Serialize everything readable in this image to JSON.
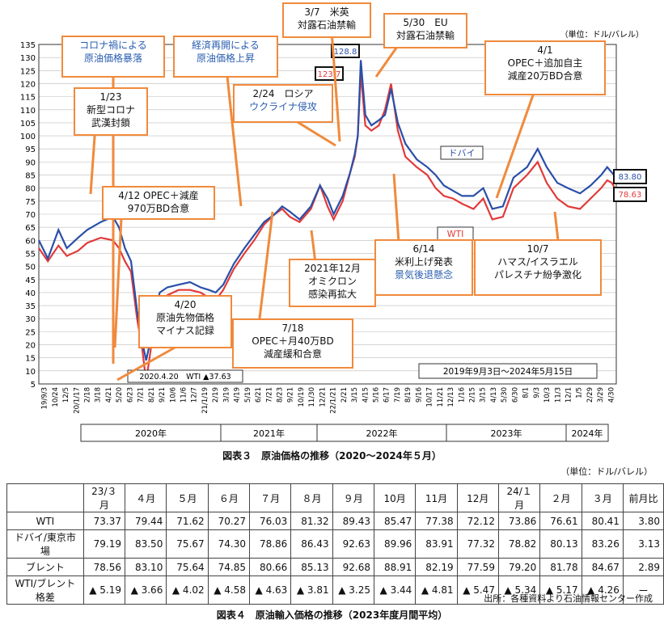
{
  "chart_data": {
    "type": "line",
    "title": "図表３　原油価格の推移（2020〜2024年５月）",
    "unit": "（単位：ドル/バレル）",
    "period": "2019年9月3日〜2024年5月15日",
    "ylim": [
      5,
      135
    ],
    "yticks": [
      5,
      10,
      15,
      20,
      25,
      30,
      35,
      40,
      45,
      50,
      55,
      60,
      65,
      70,
      75,
      80,
      85,
      90,
      95,
      100,
      105,
      110,
      115,
      120,
      125,
      130,
      135
    ],
    "xticks": [
      "19/9/3",
      "10/24",
      "12/5",
      "20/1/17",
      "2/18",
      "3/18",
      "4/21",
      "5/20",
      "6/23",
      "7/21",
      "8/21",
      "9/21",
      "10/6",
      "11/6",
      "12/7",
      "21/1/19",
      "2/19",
      "3/19",
      "4/19",
      "5/19",
      "6/21",
      "7/21",
      "8/23",
      "9/21",
      "10/19",
      "11/30",
      "12/21",
      "22/1/21",
      "2/21",
      "3/15",
      "4/15",
      "5/16",
      "6/17",
      "7/19",
      "8/19",
      "9/16",
      "10/17",
      "11/21",
      "12/13",
      "1/16",
      "2/15",
      "3/15",
      "4/13",
      "5/30",
      "6/30",
      "8/1",
      "9/3",
      "10/3",
      "11/3",
      "12/1",
      "1/5",
      "2/29",
      "3/29",
      "4/30"
    ],
    "years": [
      "2020年",
      "2021年",
      "2022年",
      "2023年",
      "2024年"
    ],
    "series": [
      {
        "name": "ドバイ",
        "color": "#2a4fa8",
        "last": "83.80",
        "points": [
          [
            0,
            60
          ],
          [
            12,
            53
          ],
          [
            26,
            64
          ],
          [
            37,
            57
          ],
          [
            52,
            61
          ],
          [
            64,
            64
          ],
          [
            82,
            67
          ],
          [
            98,
            69
          ],
          [
            106,
            65
          ],
          [
            114,
            57
          ],
          [
            122,
            52
          ],
          [
            130,
            33
          ],
          [
            137,
            21
          ],
          [
            142,
            14
          ],
          [
            148,
            22
          ],
          [
            154,
            32
          ],
          [
            160,
            40
          ],
          [
            170,
            42
          ],
          [
            185,
            43
          ],
          [
            200,
            44
          ],
          [
            214,
            42
          ],
          [
            225,
            41
          ],
          [
            234,
            40
          ],
          [
            244,
            43
          ],
          [
            258,
            51
          ],
          [
            272,
            57
          ],
          [
            285,
            62
          ],
          [
            298,
            67
          ],
          [
            312,
            70
          ],
          [
            322,
            73
          ],
          [
            332,
            71
          ],
          [
            345,
            68
          ],
          [
            360,
            73
          ],
          [
            372,
            81
          ],
          [
            382,
            76
          ],
          [
            390,
            70
          ],
          [
            402,
            77
          ],
          [
            412,
            86
          ],
          [
            418,
            93
          ],
          [
            422,
            100
          ],
          [
            426,
            129
          ],
          [
            432,
            108
          ],
          [
            440,
            104
          ],
          [
            450,
            106
          ],
          [
            458,
            108
          ],
          [
            466,
            118
          ],
          [
            475,
            105
          ],
          [
            485,
            97
          ],
          [
            500,
            91
          ],
          [
            514,
            88
          ],
          [
            525,
            85
          ],
          [
            536,
            81
          ],
          [
            548,
            79
          ],
          [
            560,
            77
          ],
          [
            575,
            77
          ],
          [
            588,
            80
          ],
          [
            600,
            72
          ],
          [
            614,
            73
          ],
          [
            628,
            84
          ],
          [
            646,
            88
          ],
          [
            660,
            95
          ],
          [
            672,
            88
          ],
          [
            686,
            82
          ],
          [
            700,
            80
          ],
          [
            716,
            78
          ],
          [
            730,
            81
          ],
          [
            744,
            85
          ],
          [
            752,
            88
          ],
          [
            758,
            86
          ],
          [
            764,
            84
          ]
        ]
      },
      {
        "name": "WTI",
        "color": "#e23a3a",
        "last": "78.63",
        "points": [
          [
            0,
            57
          ],
          [
            12,
            52
          ],
          [
            26,
            58
          ],
          [
            37,
            54
          ],
          [
            52,
            56
          ],
          [
            64,
            59
          ],
          [
            82,
            61
          ],
          [
            98,
            60
          ],
          [
            106,
            57
          ],
          [
            114,
            52
          ],
          [
            122,
            48
          ],
          [
            130,
            30
          ],
          [
            137,
            18
          ],
          [
            142,
            6
          ],
          [
            148,
            18
          ],
          [
            154,
            29
          ],
          [
            160,
            37
          ],
          [
            170,
            39
          ],
          [
            185,
            41
          ],
          [
            200,
            41
          ],
          [
            214,
            40
          ],
          [
            225,
            38
          ],
          [
            234,
            37
          ],
          [
            244,
            41
          ],
          [
            258,
            49
          ],
          [
            272,
            55
          ],
          [
            285,
            60
          ],
          [
            298,
            66
          ],
          [
            312,
            70
          ],
          [
            322,
            72
          ],
          [
            332,
            69
          ],
          [
            345,
            67
          ],
          [
            360,
            72
          ],
          [
            372,
            81
          ],
          [
            382,
            73
          ],
          [
            390,
            68
          ],
          [
            402,
            75
          ],
          [
            412,
            86
          ],
          [
            418,
            92
          ],
          [
            422,
            100
          ],
          [
            426,
            124
          ],
          [
            432,
            104
          ],
          [
            440,
            102
          ],
          [
            450,
            104
          ],
          [
            458,
            110
          ],
          [
            466,
            120
          ],
          [
            475,
            102
          ],
          [
            485,
            92
          ],
          [
            500,
            88
          ],
          [
            514,
            85
          ],
          [
            525,
            80
          ],
          [
            536,
            77
          ],
          [
            548,
            76
          ],
          [
            560,
            74
          ],
          [
            575,
            72
          ],
          [
            588,
            76
          ],
          [
            600,
            68
          ],
          [
            614,
            69
          ],
          [
            628,
            80
          ],
          [
            646,
            85
          ],
          [
            660,
            90
          ],
          [
            672,
            82
          ],
          [
            686,
            76
          ],
          [
            700,
            73
          ],
          [
            716,
            72
          ],
          [
            730,
            76
          ],
          [
            744,
            80
          ],
          [
            752,
            83
          ],
          [
            758,
            82
          ],
          [
            764,
            79
          ]
        ]
      }
    ],
    "annotations": [
      {
        "id": "a1",
        "lines": [
          "コロナ禍による",
          "原油価格暴落"
        ],
        "blue": [
          0,
          1
        ]
      },
      {
        "id": "a2",
        "lines": [
          "経済再開による",
          "原油価格上昇"
        ],
        "blue": [
          0,
          1
        ]
      },
      {
        "id": "a3",
        "lines": [
          "3/7　米英",
          "対露石油禁輸"
        ],
        "blue": []
      },
      {
        "id": "a4",
        "lines": [
          "5/30　EU",
          "対露石油禁輸"
        ],
        "blue": []
      },
      {
        "id": "a5",
        "lines": [
          "4/1",
          "OPEC＋追加自主",
          "減産20万BD合意"
        ],
        "blue": []
      },
      {
        "id": "a6",
        "lines": [
          "1/23",
          "新型コロナ",
          "武漢封鎖"
        ],
        "blue": []
      },
      {
        "id": "a7",
        "lines": [
          "2/24　ロシア",
          "ウクライナ侵攻"
        ],
        "blue": [
          1
        ]
      },
      {
        "id": "a8",
        "lines": [
          "4/12 OPEC＋減産",
          "970万BD合意"
        ],
        "blue": []
      },
      {
        "id": "a9",
        "lines": [
          "2021年12月",
          "オミクロン",
          "感染再拡大"
        ],
        "blue": []
      },
      {
        "id": "a10",
        "lines": [
          "6/14",
          "米利上げ発表",
          "景気後退懸念"
        ],
        "blue": [
          2
        ]
      },
      {
        "id": "a11",
        "lines": [
          "10/7",
          "ハマス/イスラエル",
          "パレスチナ紛争激化"
        ],
        "blue": []
      },
      {
        "id": "a12",
        "lines": [
          "4/20",
          "原油先物価格",
          "マイナス記録"
        ],
        "blue": []
      },
      {
        "id": "a13",
        "lines": [
          "7/18",
          "OPEC＋月40万BD",
          "減産緩和合意"
        ],
        "blue": []
      }
    ],
    "labels": {
      "peak_dubai": "128.8",
      "peak_wti": "123.7",
      "neg_note": "2020.4.20　WTI ▲37.63"
    }
  },
  "table": {
    "title": "図表４　原油輸入価格の推移（2023年度月間平均）",
    "unit": "（単位：ドル/バレル）",
    "source": "出所：各種資料より石油情報センター作成",
    "headers": [
      "",
      "23/３月",
      "４月",
      "５月",
      "６月",
      "７月",
      "８月",
      "９月",
      "10月",
      "11月",
      "12月",
      "24/１月",
      "２月",
      "３月",
      "前月比"
    ],
    "rows": [
      [
        "WTI",
        "73.37",
        "79.44",
        "71.62",
        "70.27",
        "76.03",
        "81.32",
        "89.43",
        "85.47",
        "77.38",
        "72.12",
        "73.86",
        "76.61",
        "80.41",
        "3.80"
      ],
      [
        "ドバイ/東京市場",
        "79.19",
        "83.50",
        "75.67",
        "74.30",
        "78.86",
        "86.43",
        "92.63",
        "89.96",
        "83.91",
        "77.32",
        "78.82",
        "80.13",
        "83.26",
        "3.13"
      ],
      [
        "ブレント",
        "78.56",
        "83.10",
        "75.64",
        "74.85",
        "80.66",
        "85.13",
        "92.68",
        "88.91",
        "82.19",
        "77.59",
        "79.20",
        "81.78",
        "84.67",
        "2.89"
      ],
      [
        "WTI/ブレント格差",
        "▲ 5.19",
        "▲ 3.66",
        "▲ 4.02",
        "▲ 4.58",
        "▲ 4.63",
        "▲ 3.81",
        "▲ 3.25",
        "▲ 3.44",
        "▲ 4.81",
        "▲ 5.47",
        "▲ 5.34",
        "▲ 5.17",
        "▲ 4.26",
        "ー"
      ]
    ]
  }
}
